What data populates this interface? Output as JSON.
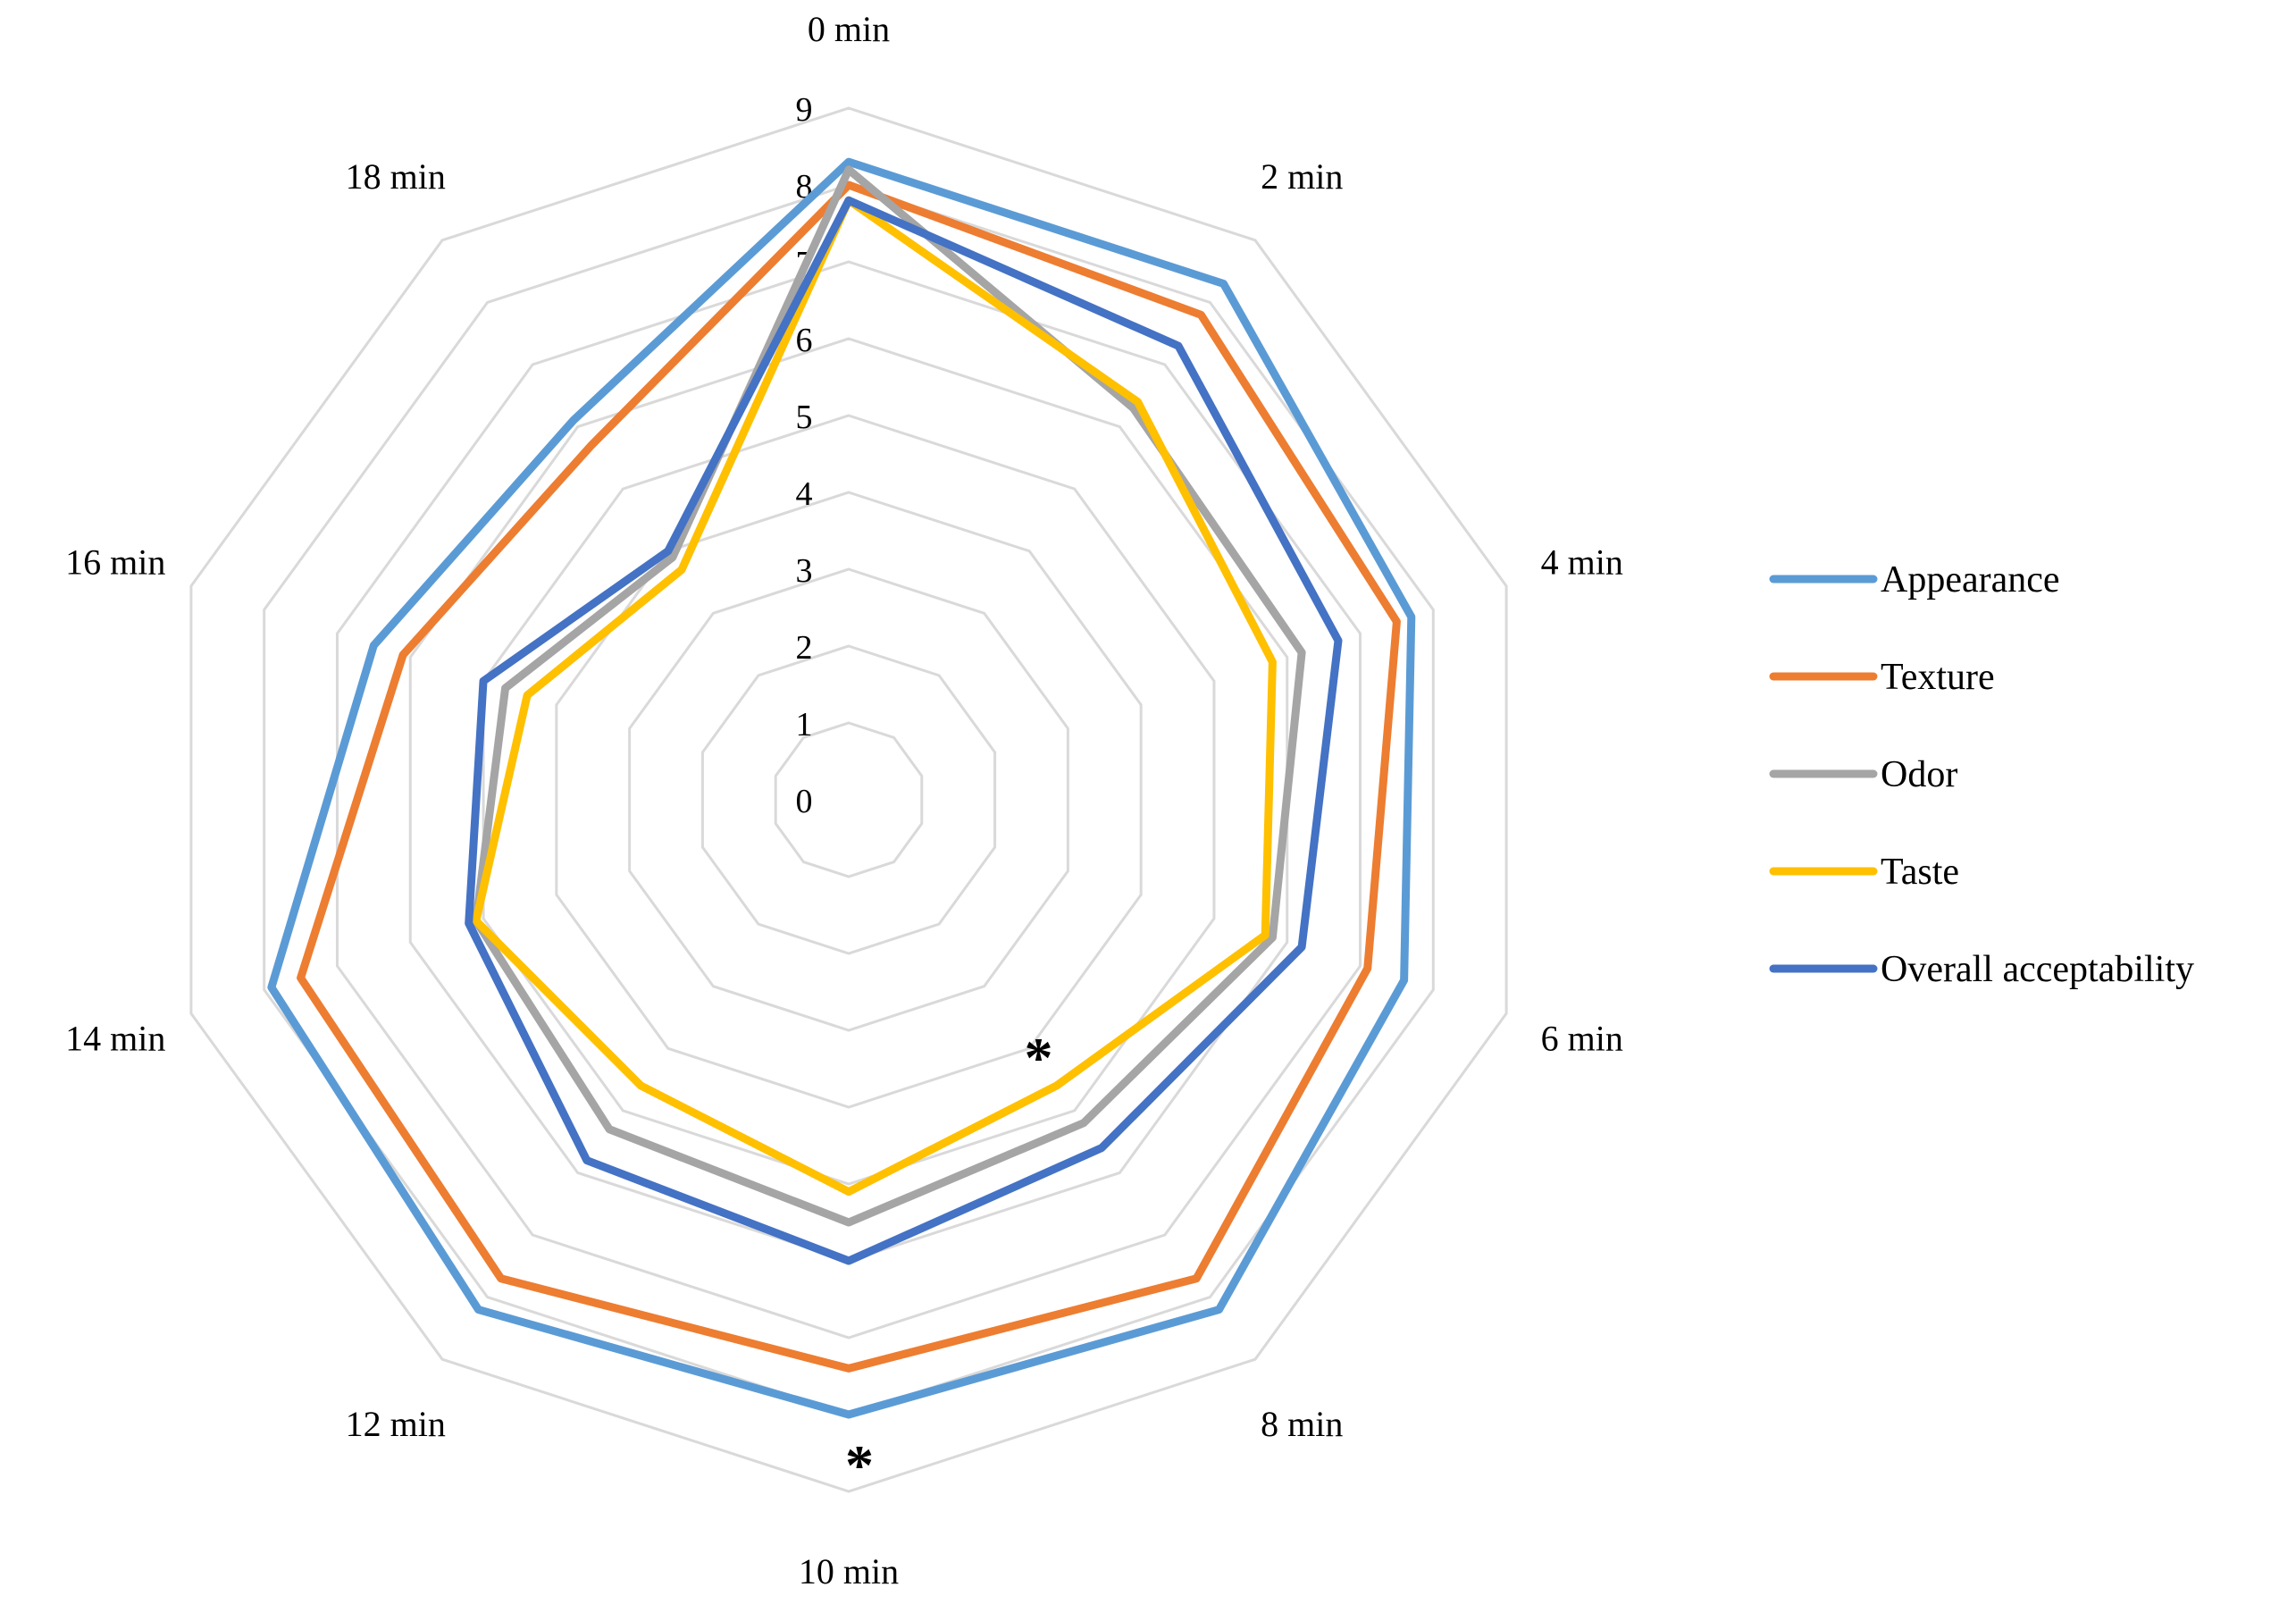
{
  "chart_data": {
    "type": "radar",
    "categories": [
      "0 min",
      "2 min",
      "4 min",
      "6 min",
      "8 min",
      "10 min",
      "12 min",
      "14 min",
      "16 min",
      "18 min"
    ],
    "rlim": [
      0,
      9
    ],
    "ticks": [
      "0",
      "1",
      "2",
      "3",
      "4",
      "5",
      "6",
      "7",
      "8",
      "9"
    ],
    "grid": true,
    "legend_position": "right",
    "series": [
      {
        "name": "Appearance",
        "color": "#5B9BD5",
        "values": [
          8.3,
          8.3,
          7.7,
          7.6,
          8.2,
          8.0,
          8.2,
          7.9,
          6.5,
          6.1
        ]
      },
      {
        "name": "Texture",
        "color": "#ED7D31",
        "values": [
          8.0,
          7.8,
          7.5,
          7.1,
          7.7,
          7.4,
          7.7,
          7.5,
          6.1,
          5.7
        ]
      },
      {
        "name": "Odor",
        "color": "#A5A5A5",
        "values": [
          8.2,
          6.3,
          6.2,
          5.8,
          5.2,
          5.5,
          5.3,
          5.1,
          4.7,
          3.9
        ]
      },
      {
        "name": "Taste",
        "color": "#FFC000",
        "values": [
          7.8,
          6.4,
          5.8,
          5.7,
          4.6,
          5.1,
          4.6,
          5.1,
          4.4,
          3.7
        ]
      },
      {
        "name": "Overall acceptability",
        "color": "#4472C4",
        "values": [
          7.8,
          7.3,
          6.7,
          6.2,
          5.6,
          6.0,
          5.8,
          5.2,
          5.0,
          4.0
        ]
      }
    ],
    "annotations": [
      {
        "text": "*",
        "category": "8 min"
      },
      {
        "text": "*",
        "category": "10 min"
      }
    ]
  }
}
